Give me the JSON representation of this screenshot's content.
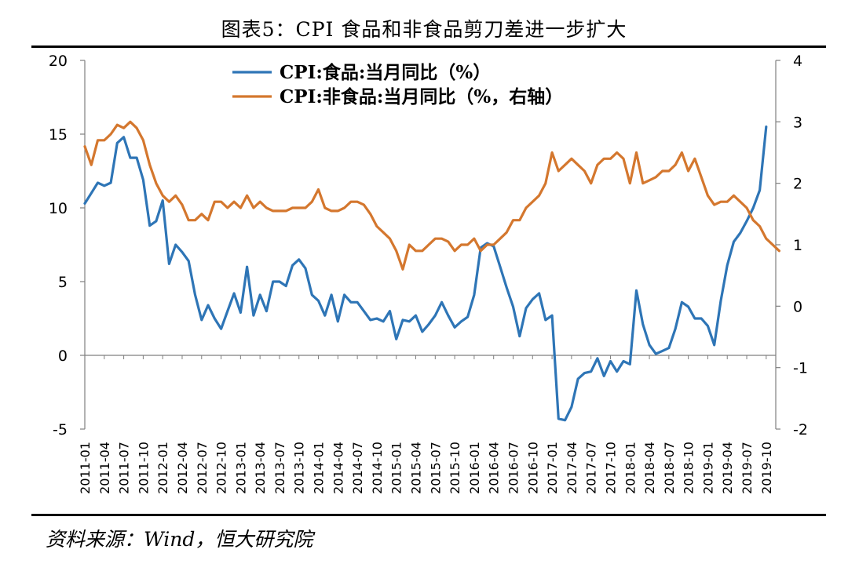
{
  "title": "图表5：CPI 食品和非食品剪刀差进一步扩大",
  "source": "资料来源：Wind，恒大研究院",
  "chart_data": {
    "type": "line",
    "title": "图表5：CPI 食品和非食品剪刀差进一步扩大",
    "xlabel": "",
    "ylabel": "",
    "ylim": [
      -5,
      20
    ],
    "y2lim": [
      -2,
      4
    ],
    "yticks": [
      -5,
      0,
      5,
      10,
      15,
      20
    ],
    "y2ticks": [
      -2,
      -1,
      0,
      1,
      2,
      3,
      4
    ],
    "xtick_labels": [
      "2011-01",
      "2011-04",
      "2011-07",
      "2011-10",
      "2012-01",
      "2012-04",
      "2012-07",
      "2012-10",
      "2013-01",
      "2013-04",
      "2013-07",
      "2013-10",
      "2014-01",
      "2014-04",
      "2014-07",
      "2014-10",
      "2015-01",
      "2015-04",
      "2015-07",
      "2015-10",
      "2016-01",
      "2016-04",
      "2016-07",
      "2016-10",
      "2017-01",
      "2017-04",
      "2017-07",
      "2017-10",
      "2018-01",
      "2018-04",
      "2018-07",
      "2018-10",
      "2019-01",
      "2019-04",
      "2019-07",
      "2019-10"
    ],
    "legend_position": "top-center",
    "grid": false,
    "x_start": "2011-01",
    "series": [
      {
        "name": "CPI:食品:当月同比（%）",
        "axis": "left",
        "color": "#2E75B6",
        "values": [
          10.3,
          11.0,
          11.7,
          11.5,
          11.7,
          14.4,
          14.8,
          13.4,
          13.4,
          11.9,
          8.8,
          9.1,
          10.5,
          6.2,
          7.5,
          7.0,
          6.4,
          4.1,
          2.4,
          3.4,
          2.5,
          1.8,
          3.0,
          4.2,
          2.9,
          6.0,
          2.7,
          4.1,
          3.0,
          5.0,
          5.0,
          4.7,
          6.1,
          6.5,
          5.9,
          4.1,
          3.7,
          2.7,
          4.1,
          2.3,
          4.1,
          3.6,
          3.6,
          3.0,
          2.4,
          2.5,
          2.3,
          3.0,
          1.1,
          2.4,
          2.3,
          2.7,
          1.6,
          2.1,
          2.7,
          3.6,
          2.7,
          1.9,
          2.3,
          2.6,
          4.1,
          7.3,
          7.6,
          7.4,
          6.0,
          4.6,
          3.3,
          1.3,
          3.2,
          3.8,
          4.2,
          2.4,
          2.7,
          -4.3,
          -4.4,
          -3.5,
          -1.6,
          -1.2,
          -1.1,
          -0.2,
          -1.4,
          -0.4,
          -1.1,
          -0.4,
          -0.6,
          4.4,
          2.1,
          0.7,
          0.1,
          0.3,
          0.5,
          1.8,
          3.6,
          3.3,
          2.5,
          2.5,
          2.0,
          0.7,
          3.7,
          6.1,
          7.7,
          8.3,
          9.1,
          10.0,
          11.2,
          15.5
        ]
      },
      {
        "name": "CPI:非食品:当月同比（%，右轴）",
        "axis": "right",
        "color": "#D4772E",
        "values": [
          2.6,
          2.3,
          2.7,
          2.7,
          2.8,
          2.95,
          2.9,
          3.0,
          2.9,
          2.7,
          2.3,
          2.0,
          1.8,
          1.7,
          1.8,
          1.65,
          1.4,
          1.4,
          1.5,
          1.4,
          1.7,
          1.7,
          1.6,
          1.7,
          1.6,
          1.8,
          1.6,
          1.7,
          1.6,
          1.55,
          1.55,
          1.55,
          1.6,
          1.6,
          1.6,
          1.7,
          1.9,
          1.6,
          1.55,
          1.55,
          1.6,
          1.7,
          1.7,
          1.65,
          1.5,
          1.3,
          1.2,
          1.1,
          0.9,
          0.6,
          1.0,
          0.9,
          0.9,
          1.0,
          1.1,
          1.1,
          1.05,
          0.9,
          1.0,
          1.0,
          1.1,
          0.9,
          1.0,
          1.0,
          1.1,
          1.2,
          1.4,
          1.4,
          1.6,
          1.7,
          1.8,
          2.0,
          2.5,
          2.2,
          2.3,
          2.4,
          2.3,
          2.2,
          2.0,
          2.3,
          2.4,
          2.4,
          2.5,
          2.4,
          2.0,
          2.5,
          2.0,
          2.05,
          2.1,
          2.2,
          2.2,
          2.3,
          2.5,
          2.2,
          2.4,
          2.1,
          1.8,
          1.65,
          1.7,
          1.7,
          1.8,
          1.7,
          1.6,
          1.4,
          1.3,
          1.1,
          1.0,
          0.9
        ]
      }
    ]
  }
}
